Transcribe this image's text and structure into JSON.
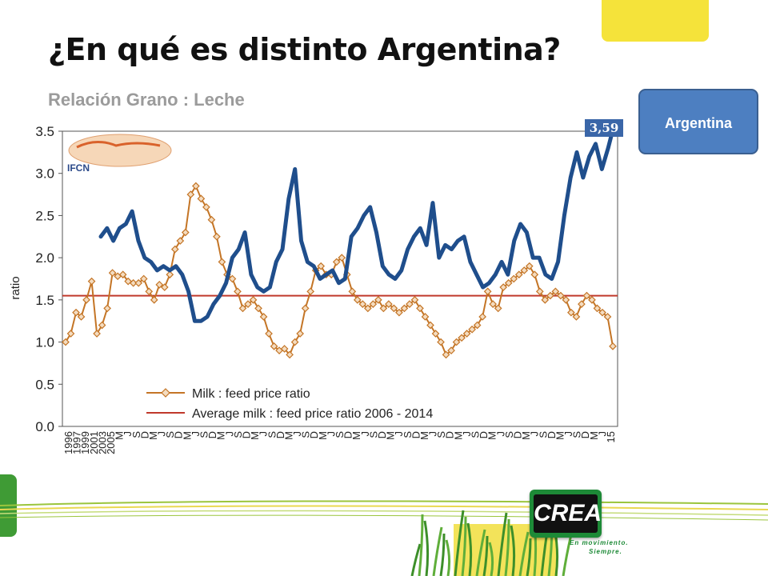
{
  "slide": {
    "title": "¿En qué es distinto Argentina?",
    "subtitle": "Relación Grano : Leche",
    "callout": "Argentina",
    "value_tag": "3,59",
    "logo_text": "CREA",
    "tagline_1": "En movimiento.",
    "tagline_2": "Siempre.",
    "chart_logo_text": "IFCN"
  },
  "colors": {
    "argentina_line": "#1f4e8c",
    "milk_line": "#c47526",
    "average_line": "#c0392b",
    "callout_bg": "#4d7fc1"
  },
  "chart_data": {
    "type": "line",
    "ylabel": "ratio",
    "xlabel": "",
    "ylim": [
      0,
      3.5
    ],
    "yticks": [
      "0.0",
      "0.5",
      "1.0",
      "1.5",
      "2.0",
      "2.5",
      "3.0",
      "3.5"
    ],
    "x_tick_labels": [
      "1996",
      "1997",
      "1999",
      "2001",
      "2003",
      "2005",
      "M",
      "J",
      "S",
      "D",
      "M",
      "J",
      "S",
      "D",
      "M",
      "J",
      "S",
      "D",
      "M",
      "J",
      "S",
      "D",
      "M",
      "J",
      "S",
      "D",
      "M",
      "J",
      "S",
      "D",
      "M",
      "J",
      "S",
      "D",
      "M",
      "J",
      "S",
      "D",
      "M",
      "J",
      "S",
      "D",
      "M",
      "J",
      "S",
      "D",
      "M",
      "J",
      "S",
      "D",
      "M",
      "J",
      "S",
      "D",
      "M",
      "J",
      "S",
      "D",
      "M",
      "J",
      "S",
      "D",
      "M",
      "J",
      "15"
    ],
    "legend": [
      "Milk : feed price ratio",
      "Average milk : feed price ratio 2006 - 2014"
    ],
    "legend_position": "bottom-left",
    "grid": false,
    "average_value": 1.55,
    "series": [
      {
        "name": "Milk : feed price ratio",
        "marker": "diamond",
        "values": [
          1.0,
          1.1,
          1.35,
          1.3,
          1.5,
          1.72,
          1.1,
          1.2,
          1.4,
          1.82,
          1.78,
          1.8,
          1.72,
          1.7,
          1.7,
          1.75,
          1.6,
          1.5,
          1.68,
          1.65,
          1.8,
          2.1,
          2.2,
          2.3,
          2.75,
          2.85,
          2.7,
          2.6,
          2.45,
          2.25,
          1.95,
          1.8,
          1.75,
          1.6,
          1.4,
          1.45,
          1.5,
          1.4,
          1.3,
          1.1,
          0.95,
          0.9,
          0.92,
          0.85,
          1.0,
          1.1,
          1.4,
          1.6,
          1.85,
          1.9,
          1.8,
          1.8,
          1.95,
          2.0,
          1.8,
          1.6,
          1.5,
          1.45,
          1.4,
          1.45,
          1.5,
          1.4,
          1.45,
          1.4,
          1.35,
          1.4,
          1.45,
          1.5,
          1.4,
          1.3,
          1.2,
          1.1,
          1.0,
          0.85,
          0.9,
          1.0,
          1.05,
          1.1,
          1.15,
          1.2,
          1.3,
          1.6,
          1.45,
          1.4,
          1.65,
          1.7,
          1.75,
          1.8,
          1.85,
          1.9,
          1.8,
          1.6,
          1.5,
          1.55,
          1.6,
          1.55,
          1.5,
          1.35,
          1.3,
          1.45,
          1.55,
          1.5,
          1.4,
          1.35,
          1.3,
          0.95
        ]
      },
      {
        "name": "",
        "values": [
          2.25,
          2.35,
          2.2,
          2.35,
          2.4,
          2.55,
          2.2,
          2.0,
          1.95,
          1.85,
          1.9,
          1.85,
          1.9,
          1.8,
          1.6,
          1.25,
          1.25,
          1.3,
          1.45,
          1.55,
          1.7,
          2.0,
          2.1,
          2.3,
          1.8,
          1.65,
          1.6,
          1.65,
          1.95,
          2.1,
          2.7,
          3.05,
          2.2,
          1.95,
          1.9,
          1.75,
          1.8,
          1.85,
          1.7,
          1.75,
          2.25,
          2.35,
          2.5,
          2.6,
          2.3,
          1.9,
          1.8,
          1.75,
          1.85,
          2.1,
          2.25,
          2.35,
          2.15,
          2.65,
          2.0,
          2.15,
          2.1,
          2.2,
          2.25,
          1.95,
          1.8,
          1.65,
          1.7,
          1.8,
          1.95,
          1.8,
          2.2,
          2.4,
          2.3,
          2.0,
          2.0,
          1.8,
          1.75,
          1.95,
          2.5,
          2.95,
          3.25,
          2.95,
          3.2,
          3.35,
          3.05,
          3.3,
          3.59
        ]
      }
    ]
  }
}
